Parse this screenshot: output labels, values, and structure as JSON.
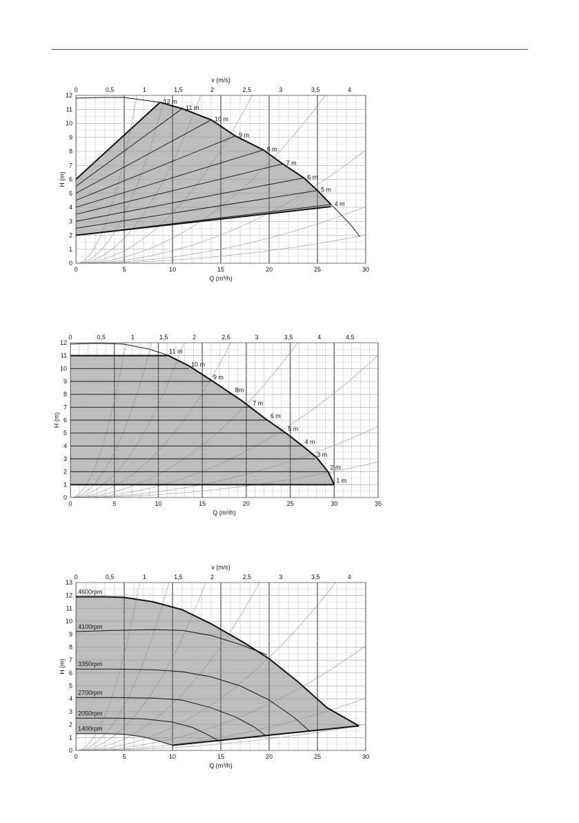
{
  "chart_data": [
    {
      "type": "line",
      "xlabel": "Q (m³/h)",
      "ylabel": "H (m)",
      "x2label": "v (m/s)",
      "xlim": [
        0,
        30
      ],
      "ylim": [
        0,
        12
      ],
      "xticks": [
        0,
        5,
        10,
        15,
        20,
        25,
        30
      ],
      "yticks": [
        0,
        1,
        2,
        3,
        4,
        5,
        6,
        7,
        8,
        9,
        10,
        11,
        12
      ],
      "v_ticks": [
        {
          "label": "0",
          "q": 0
        },
        {
          "label": "0,5",
          "q": 3.5
        },
        {
          "label": "1",
          "q": 7.1
        },
        {
          "label": "1,5",
          "q": 10.6
        },
        {
          "label": "2",
          "q": 14.1
        },
        {
          "label": "2,5",
          "q": 17.7
        },
        {
          "label": "3",
          "q": 21.2
        },
        {
          "label": "3,5",
          "q": 24.8
        },
        {
          "label": "4",
          "q": 28.3
        }
      ],
      "grid": true,
      "max_curve": [
        [
          0,
          11.8
        ],
        [
          3,
          11.85
        ],
        [
          5,
          11.85
        ],
        [
          8.7,
          11.5
        ],
        [
          11,
          11.05
        ],
        [
          14,
          10.25
        ],
        [
          16.5,
          9.1
        ],
        [
          19.4,
          8.1
        ],
        [
          21.4,
          7.1
        ],
        [
          23.6,
          6.1
        ],
        [
          25,
          5.2
        ],
        [
          26.4,
          4.2
        ],
        [
          27,
          3.8
        ],
        [
          28.5,
          2.7
        ],
        [
          29.4,
          1.9
        ]
      ],
      "region_upper": [
        [
          0,
          6
        ],
        [
          8.7,
          11.5
        ]
      ],
      "region_lower": [
        [
          0,
          2
        ],
        [
          26.4,
          4.05
        ]
      ],
      "setpoint_lines": [
        {
          "label": "12 m",
          "x": [
            0,
            8.7
          ],
          "y": [
            6,
            11.5
          ]
        },
        {
          "label": "11 m",
          "x": [
            0,
            11
          ],
          "y": [
            5.5,
            11.05
          ]
        },
        {
          "label": "10 m",
          "x": [
            0,
            14
          ],
          "y": [
            5.0,
            10.25
          ]
        },
        {
          "label": "9 m",
          "x": [
            0,
            16.5
          ],
          "y": [
            4.5,
            9.1
          ]
        },
        {
          "label": "8 m",
          "x": [
            0,
            19.4
          ],
          "y": [
            4.0,
            8.1
          ]
        },
        {
          "label": "7 m",
          "x": [
            0,
            21.4
          ],
          "y": [
            3.5,
            7.1
          ]
        },
        {
          "label": "6 m",
          "x": [
            0,
            23.6
          ],
          "y": [
            3.0,
            6.1
          ]
        },
        {
          "label": "5 m",
          "x": [
            0,
            25
          ],
          "y": [
            2.5,
            5.2
          ]
        },
        {
          "label": "4 m",
          "x": [
            0,
            26.4
          ],
          "y": [
            2.0,
            4.2
          ]
        }
      ]
    },
    {
      "type": "line",
      "xlabel": "Q (m³/h)",
      "ylabel": "H (m)",
      "xlim": [
        0,
        35
      ],
      "ylim": [
        0,
        12
      ],
      "xticks": [
        0,
        5,
        10,
        15,
        20,
        25,
        30,
        35
      ],
      "yticks": [
        0,
        1,
        2,
        3,
        4,
        5,
        6,
        7,
        8,
        9,
        10,
        11,
        12
      ],
      "v_ticks": [
        {
          "label": "0",
          "q": 0
        },
        {
          "label": "0,5",
          "q": 3.5
        },
        {
          "label": "1",
          "q": 7.1
        },
        {
          "label": "1,5",
          "q": 10.6
        },
        {
          "label": "2",
          "q": 14.1
        },
        {
          "label": "2,5",
          "q": 17.7
        },
        {
          "label": "3",
          "q": 21.2
        },
        {
          "label": "3,5",
          "q": 24.8
        },
        {
          "label": "4",
          "q": 28.3
        },
        {
          "label": "4,5",
          "q": 31.8
        }
      ],
      "grid": true,
      "max_curve": [
        [
          0,
          11.9
        ],
        [
          3,
          11.95
        ],
        [
          6,
          11.9
        ],
        [
          9,
          11.5
        ],
        [
          11,
          11.05
        ],
        [
          13.5,
          10.2
        ],
        [
          16,
          9.1
        ],
        [
          19.5,
          7.5
        ],
        [
          22,
          6.2
        ],
        [
          24.5,
          5.0
        ],
        [
          26.4,
          4.0
        ],
        [
          28,
          3.1
        ],
        [
          29.3,
          2.0
        ],
        [
          30,
          1.0
        ]
      ],
      "setpoint_lines": [
        {
          "label": "11 m",
          "h": 11,
          "x_end": 11
        },
        {
          "label": "10 m",
          "h": 10,
          "x_end": 13.5
        },
        {
          "label": "9 m",
          "h": 9,
          "x_end": 16
        },
        {
          "label": "8m",
          "h": 8,
          "x_end": 18.5
        },
        {
          "label": "7 m",
          "h": 7,
          "x_end": 20.5
        },
        {
          "label": "6 m",
          "h": 6,
          "x_end": 22.5
        },
        {
          "label": "5 m",
          "h": 5,
          "x_end": 24.5
        },
        {
          "label": "4 m",
          "h": 4,
          "x_end": 26.4
        },
        {
          "label": "3 m",
          "h": 3,
          "x_end": 27.8
        },
        {
          "label": "2 m",
          "h": 2,
          "x_end": 29.3
        },
        {
          "label": "1 m",
          "h": 1,
          "x_end": 30
        }
      ]
    },
    {
      "type": "line",
      "xlabel": "Q (m³/h)",
      "ylabel": "H (m)",
      "x2label": "v (m/s)",
      "xlim": [
        0,
        30
      ],
      "ylim": [
        0,
        13
      ],
      "xticks": [
        0,
        5,
        10,
        15,
        20,
        25,
        30
      ],
      "yticks": [
        0,
        1,
        2,
        3,
        4,
        5,
        6,
        7,
        8,
        9,
        10,
        11,
        12,
        13
      ],
      "v_ticks": [
        {
          "label": "0",
          "q": 0
        },
        {
          "label": "0,5",
          "q": 3.5
        },
        {
          "label": "1",
          "q": 7.1
        },
        {
          "label": "1,5",
          "q": 10.6
        },
        {
          "label": "2",
          "q": 14.1
        },
        {
          "label": "2,5",
          "q": 17.7
        },
        {
          "label": "3",
          "q": 21.2
        },
        {
          "label": "3,5",
          "q": 24.8
        },
        {
          "label": "4",
          "q": 28.3
        }
      ],
      "grid": true,
      "min_line": [
        [
          10,
          0.4
        ],
        [
          29.3,
          1.9
        ]
      ],
      "speed_curves": [
        {
          "label": "4600rpm",
          "x": [
            0,
            3,
            5,
            8,
            11,
            14,
            17.5,
            20,
            23,
            26,
            29.3
          ],
          "y": [
            11.9,
            11.9,
            11.85,
            11.5,
            10.9,
            9.8,
            8.3,
            7.1,
            5.3,
            3.3,
            1.9
          ]
        },
        {
          "label": "4100rpm",
          "x": [
            0,
            4,
            8,
            11,
            14,
            17,
            19.8
          ],
          "y": [
            9.2,
            9.3,
            9.35,
            9.3,
            8.9,
            8.2,
            7.4
          ]
        },
        {
          "label": "3350rpm",
          "x": [
            0,
            4,
            8,
            11,
            14,
            17,
            20,
            22.5,
            24.2
          ],
          "y": [
            6.3,
            6.3,
            6.25,
            6.1,
            5.7,
            5.0,
            3.9,
            2.6,
            1.5
          ]
        },
        {
          "label": "2700rpm",
          "x": [
            0,
            4,
            8,
            11,
            14,
            16.5,
            18.5,
            19.7
          ],
          "y": [
            4.1,
            4.1,
            4.05,
            3.9,
            3.3,
            2.6,
            1.8,
            1.1
          ]
        },
        {
          "label": "2050rpm",
          "x": [
            0,
            4,
            7,
            10,
            12,
            13.7,
            14.9
          ],
          "y": [
            2.5,
            2.5,
            2.45,
            2.2,
            1.8,
            1.2,
            0.7
          ]
        },
        {
          "label": "1400rpm",
          "x": [
            0,
            3,
            5,
            7,
            8.5,
            10
          ],
          "y": [
            1.3,
            1.3,
            1.25,
            1.05,
            0.75,
            0.4
          ]
        }
      ]
    }
  ]
}
